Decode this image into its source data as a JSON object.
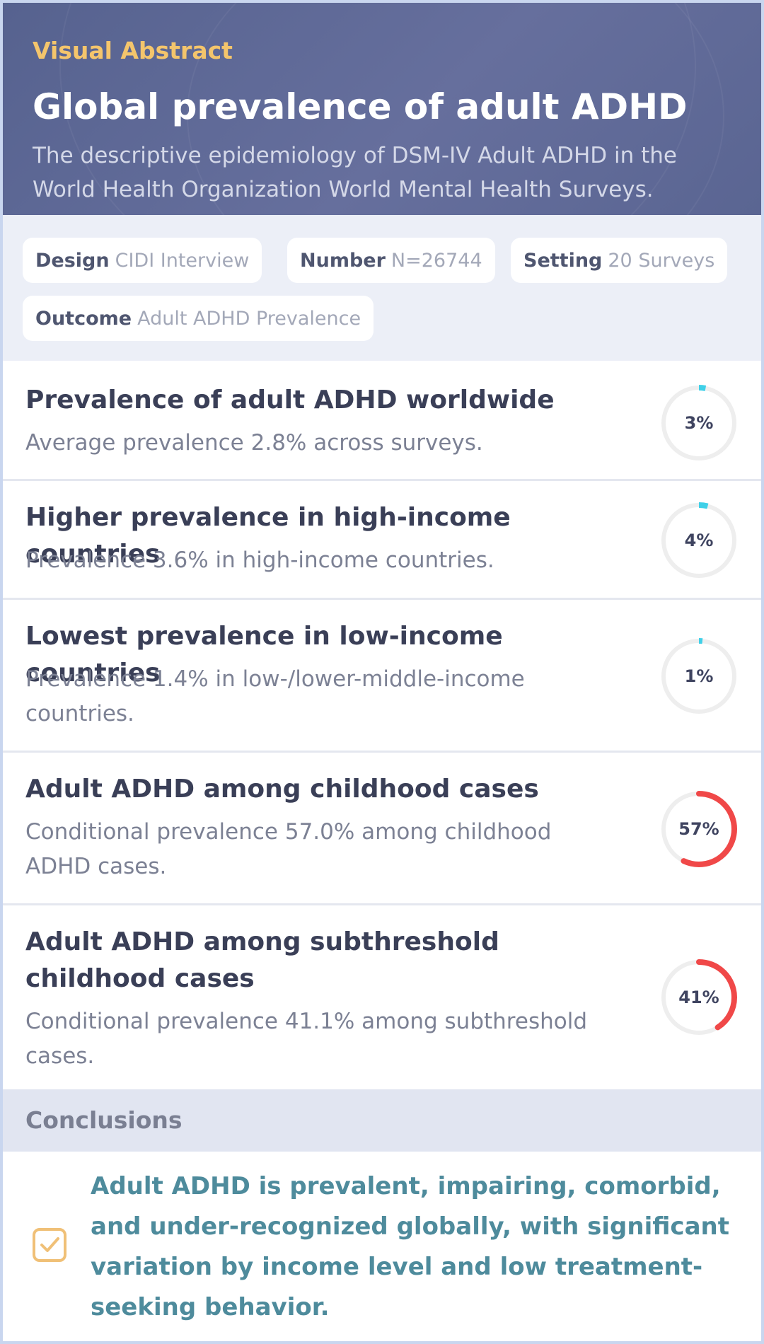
{
  "header": {
    "eyebrow": "Visual Abstract",
    "title": "Global prevalence of adult ADHD",
    "subtitle": "The descriptive epidemiology of DSM-IV Adult ADHD in the World Health Organization World Mental Health Surveys."
  },
  "meta": [
    {
      "label": "Design",
      "value": "CIDI Interview"
    },
    {
      "label": "Number",
      "value": "N=26744"
    },
    {
      "label": "Setting",
      "value": "20 Surveys"
    },
    {
      "label": "Outcome",
      "value": "Adult ADHD Prevalence"
    }
  ],
  "findings": [
    {
      "title": "Prevalence of adult ADHD worldwide",
      "description": "Average prevalence 2.8% across surveys.",
      "percent_label": "3%",
      "percent": 3,
      "color": "#3fd0e8"
    },
    {
      "title": "Higher prevalence in high-income countries",
      "description": "Prevalence 3.6% in high-income countries.",
      "percent_label": "4%",
      "percent": 4,
      "color": "#3fd0e8"
    },
    {
      "title": "Lowest prevalence in low-income countries",
      "description": "Prevalence 1.4% in low-/lower-middle-income countries.",
      "percent_label": "1%",
      "percent": 1,
      "color": "#3fd0e8"
    },
    {
      "title": "Adult ADHD among childhood cases",
      "description": "Conditional prevalence 57.0% among childhood ADHD cases.",
      "percent_label": "57%",
      "percent": 57,
      "color": "#f04848"
    },
    {
      "title": "Adult ADHD among subthreshold childhood cases",
      "description": "Conditional prevalence 41.1% among subthreshold cases.",
      "percent_label": "41%",
      "percent": 41,
      "color": "#f04848"
    }
  ],
  "conclusions": {
    "heading": "Conclusions",
    "icon": "checkbox-icon",
    "text": "Adult ADHD is prevalent, impairing, comorbid, and under-recognized globally, with significant variation by income level and low treatment-seeking behavior."
  },
  "colors": {
    "header_bg": "#5e6996",
    "accent": "#f4c56c",
    "conclusion_text": "#4e8b9c",
    "ring_low": "#3fd0e8",
    "ring_high": "#f04848"
  }
}
